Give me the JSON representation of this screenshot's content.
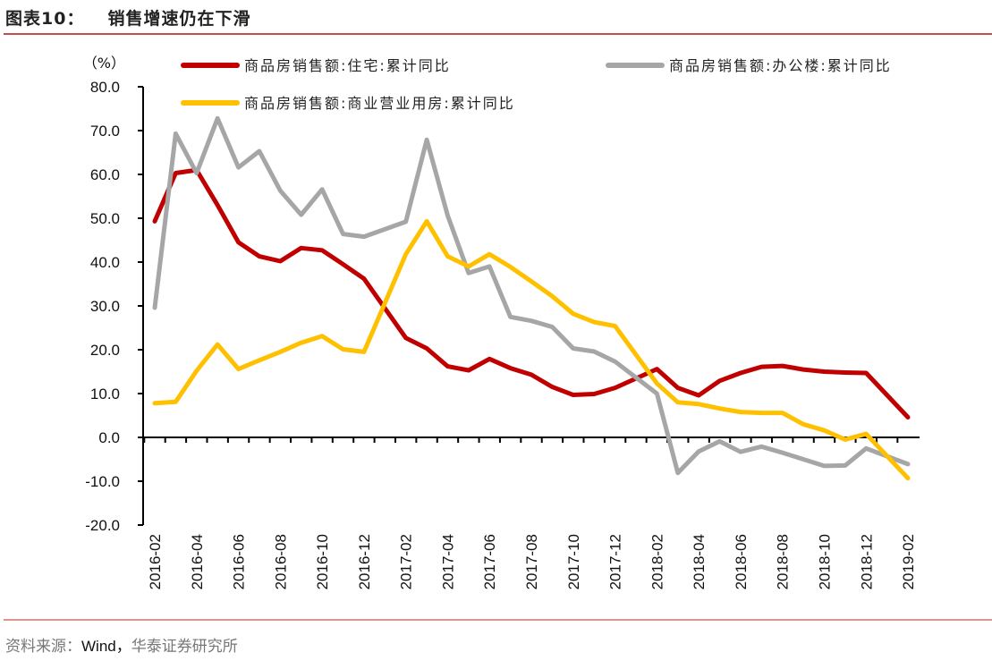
{
  "header": {
    "figure_no": "图表10：",
    "title": "销售增速仍在下滑"
  },
  "footer": {
    "source_prefix": "资料来源：",
    "source_main": "Wind，",
    "source_org": "华泰证券研究所"
  },
  "chart_data": {
    "type": "line",
    "title": "销售增速仍在下滑",
    "ylabel": "（%）",
    "xlabel": "",
    "ylim": [
      -20,
      80
    ],
    "yticks": [
      "80.0",
      "70.0",
      "60.0",
      "50.0",
      "40.0",
      "30.0",
      "20.0",
      "10.0",
      "0.0",
      "-10.0",
      "-20.0"
    ],
    "ytick_values": [
      80,
      70,
      60,
      50,
      40,
      30,
      20,
      10,
      0,
      -10,
      -20
    ],
    "xticks": [
      "2016-02",
      "2016-04",
      "2016-06",
      "2016-08",
      "2016-10",
      "2016-12",
      "2017-02",
      "2017-04",
      "2017-06",
      "2017-08",
      "2017-10",
      "2017-12",
      "2018-02",
      "2018-04",
      "2018-06",
      "2018-08",
      "2018-10",
      "2018-12",
      "2019-02"
    ],
    "x": [
      "2016-02",
      "2016-03",
      "2016-04",
      "2016-05",
      "2016-06",
      "2016-07",
      "2016-08",
      "2016-09",
      "2016-10",
      "2016-11",
      "2016-12",
      "2017-02",
      "2017-03",
      "2017-04",
      "2017-05",
      "2017-06",
      "2017-07",
      "2017-08",
      "2017-09",
      "2017-10",
      "2017-11",
      "2017-12",
      "2018-02",
      "2018-03",
      "2018-04",
      "2018-05",
      "2018-06",
      "2018-07",
      "2018-08",
      "2018-09",
      "2018-10",
      "2018-11",
      "2018-12",
      "2019-02"
    ],
    "grid": false,
    "legend_position": "top",
    "series": [
      {
        "name": "商品房销售额:住宅:累计同比",
        "color": "#c00000",
        "values": [
          49.3,
          60.3,
          61.0,
          53.0,
          44.5,
          41.3,
          40.2,
          43.2,
          42.7,
          39.5,
          36.2,
          22.7,
          20.3,
          16.2,
          15.3,
          17.9,
          15.8,
          14.3,
          11.5,
          9.7,
          9.9,
          11.3,
          15.6,
          11.3,
          9.6,
          12.9,
          14.7,
          16.1,
          16.3,
          15.5,
          15.0,
          14.8,
          14.7,
          4.6
        ]
      },
      {
        "name": "商品房销售额:办公楼:累计同比",
        "color": "#a6a6a6",
        "values": [
          29.6,
          69.3,
          60.3,
          72.8,
          61.6,
          65.3,
          56.3,
          50.8,
          56.6,
          46.4,
          45.8,
          49.2,
          67.9,
          50.6,
          37.5,
          39.0,
          27.5,
          26.6,
          25.2,
          20.3,
          19.6,
          17.3,
          10.0,
          -8.1,
          -3.2,
          -0.9,
          -3.3,
          -2.1,
          -3.5,
          -5.0,
          -6.5,
          -6.4,
          -2.5,
          -6.1
        ]
      },
      {
        "name": "商品房销售额:商业营业用房:累计同比",
        "color": "#ffc000",
        "values": [
          7.8,
          8.1,
          15.2,
          21.2,
          15.6,
          17.6,
          19.5,
          21.6,
          23.1,
          20.1,
          19.5,
          41.8,
          49.3,
          41.3,
          39.0,
          41.8,
          38.9,
          35.6,
          32.2,
          28.2,
          26.3,
          25.4,
          12.3,
          8.0,
          7.6,
          6.6,
          5.8,
          5.6,
          5.6,
          3.0,
          1.6,
          -0.5,
          0.8,
          -9.3
        ]
      }
    ]
  }
}
